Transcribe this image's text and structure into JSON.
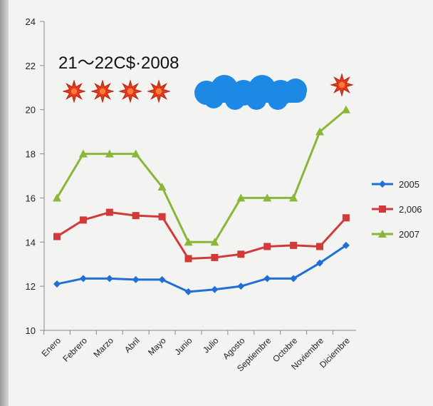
{
  "chart_data": {
    "type": "line",
    "categories": [
      "Enero",
      "Febrero",
      "Marzo",
      "Abril",
      "Mayo",
      "Junio",
      "Julio",
      "Agosto",
      "Septiembre",
      "Octobre",
      "Noviembre",
      "Diciembre"
    ],
    "series": [
      {
        "name": "2005",
        "color": "#1f6fd6",
        "marker": "diamond",
        "values": [
          12.1,
          12.35,
          12.35,
          12.3,
          12.3,
          11.75,
          11.85,
          12.0,
          12.35,
          12.35,
          13.05,
          13.85
        ]
      },
      {
        "name": "2,006",
        "color": "#d23a3a",
        "marker": "square",
        "values": [
          14.25,
          15.0,
          15.35,
          15.2,
          15.15,
          13.25,
          13.3,
          13.45,
          13.8,
          13.85,
          13.8,
          15.1
        ]
      },
      {
        "name": "2007",
        "color": "#8ab63a",
        "marker": "triangle",
        "values": [
          16.0,
          18.0,
          18.0,
          18.0,
          16.5,
          14.0,
          14.0,
          16.0,
          16.0,
          16.0,
          19.0,
          20.0
        ]
      }
    ],
    "yticks": [
      "10",
      "12",
      "14",
      "16",
      "18",
      "20",
      "22",
      "24"
    ],
    "ylim": [
      10,
      24
    ],
    "grid": false,
    "legend": "right",
    "annotation": "21～22C$·2008"
  },
  "icons": {
    "sun_icons": [
      "star-icon",
      "star-icon",
      "star-icon",
      "star-icon",
      "star-icon"
    ],
    "cloud_icon": "cloud-icon",
    "sun_color": "#e43a1c",
    "cloud_color": "#1e88e5"
  }
}
